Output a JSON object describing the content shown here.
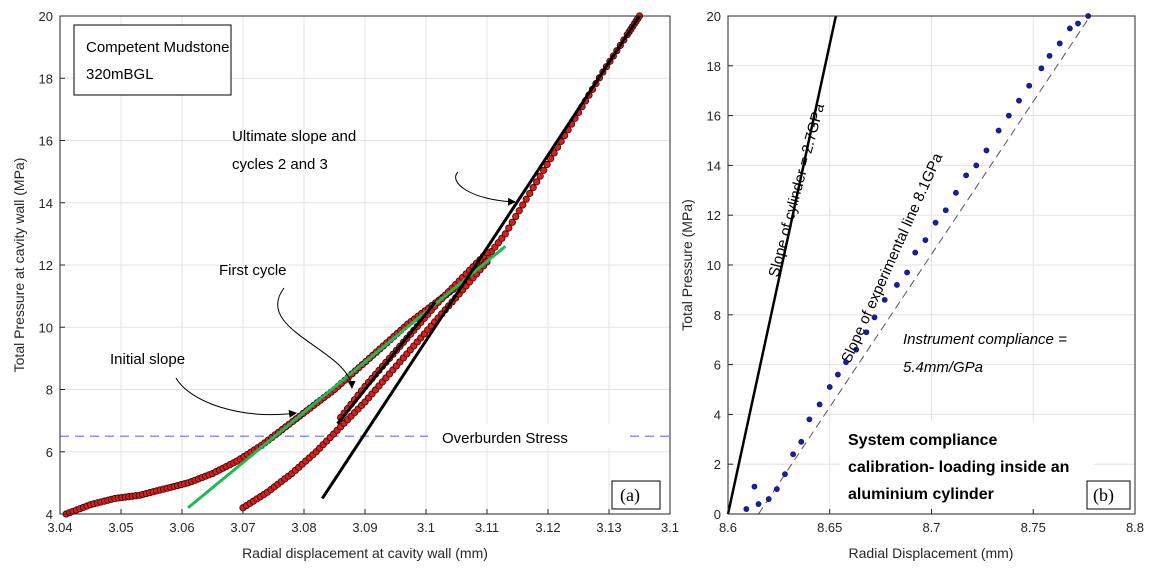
{
  "chart_data": [
    {
      "type": "scatter",
      "panel": "(a)",
      "xlabel": "Radial displacement at cavity wall (mm)",
      "ylabel": "Total Pressure at cavity wall (MPa)",
      "xlim": [
        3.04,
        3.14
      ],
      "ylim": [
        4,
        20
      ],
      "xticks": [
        "3.04",
        "3.05",
        "3.06",
        "3.07",
        "3.08",
        "3.09",
        "3.1",
        "3.11",
        "3.12",
        "3.13",
        "3.1"
      ],
      "yticks": [
        "4",
        "6",
        "8",
        "10",
        "12",
        "14",
        "16",
        "18",
        "20"
      ],
      "grid": true,
      "textbox": [
        "Competent Mudstone",
        "320mBGL"
      ],
      "colors": {
        "points": "#d62020",
        "point_edge": "#3a0000",
        "initial_slope": "#1db954",
        "cycle_slopes": "#000000",
        "overburden": "#6b6bff"
      },
      "series": [
        {
          "x": [
            3.041,
            3.045,
            3.049,
            3.053,
            3.057,
            3.061,
            3.065,
            3.069,
            3.073,
            3.077,
            3.081,
            3.085,
            3.089,
            3.093,
            3.097,
            3.101,
            3.105,
            3.109,
            3.113,
            3.117,
            3.121,
            3.125,
            3.129,
            3.133,
            3.135
          ],
          "y": [
            4.0,
            4.3,
            4.5,
            4.6,
            4.8,
            5.0,
            5.3,
            5.7,
            6.2,
            6.8,
            7.4,
            8.0,
            8.7,
            9.4,
            10.1,
            10.7,
            11.3,
            12.0,
            13.0,
            14.3,
            15.6,
            16.9,
            18.2,
            19.4,
            20.0
          ]
        },
        {
          "x": [
            3.07,
            3.074,
            3.078,
            3.082,
            3.086,
            3.09,
            3.094,
            3.098,
            3.102,
            3.106,
            3.11
          ],
          "y": [
            4.2,
            4.7,
            5.3,
            6.0,
            6.8,
            7.6,
            8.5,
            9.4,
            10.3,
            11.2,
            12.1
          ]
        },
        {
          "x": [
            3.086,
            3.09,
            3.094,
            3.098,
            3.102,
            3.106,
            3.11
          ],
          "y": [
            7.1,
            8.1,
            9.0,
            9.9,
            10.8,
            11.6,
            12.4
          ]
        }
      ],
      "lines": [
        {
          "label": "Initial slope",
          "x": [
            3.061,
            3.113
          ],
          "y": [
            4.2,
            12.6
          ]
        },
        {
          "label": "First cycle",
          "x": [
            3.0855,
            3.1015
          ],
          "y": [
            6.9,
            10.8
          ]
        },
        {
          "label": "Ultimate slope and cycles 2 and 3",
          "x": [
            3.083,
            3.135
          ],
          "y": [
            4.5,
            20.0
          ]
        },
        {
          "label": "Overburden Stress",
          "x": [
            3.04,
            3.14
          ],
          "y": [
            6.5,
            6.5
          ]
        }
      ],
      "annotations": {
        "ultimate_line1": "Ultimate slope and",
        "ultimate_line2": "cycles 2 and 3",
        "first_cycle": "First cycle",
        "initial_slope": "Initial slope",
        "overburden": "Overburden Stress"
      }
    },
    {
      "type": "scatter",
      "panel": "(b)",
      "xlabel": "Radial Displacement (mm)",
      "ylabel": "Total Pressure (MPa)",
      "xlim": [
        8.6,
        8.8
      ],
      "ylim": [
        0,
        20
      ],
      "xticks": [
        "8.6",
        "8.65",
        "8.7",
        "8.75",
        "8.8"
      ],
      "yticks": [
        "0",
        "2",
        "4",
        "6",
        "8",
        "10",
        "12",
        "14",
        "16",
        "18",
        "20"
      ],
      "grid": true,
      "colors": {
        "points": "#1520a6",
        "cylinder": "#000000",
        "experimental": "#555555"
      },
      "series": [
        {
          "x": [
            8.609,
            8.613,
            8.615,
            8.62,
            8.624,
            8.628,
            8.632,
            8.636,
            8.64,
            8.645,
            8.65,
            8.654,
            8.658,
            8.663,
            8.668,
            8.672,
            8.677,
            8.683,
            8.688,
            8.692,
            8.697,
            8.702,
            8.707,
            8.712,
            8.717,
            8.722,
            8.727,
            8.733,
            8.738,
            8.743,
            8.748,
            8.754,
            8.758,
            8.763,
            8.768,
            8.772,
            8.777
          ],
          "y": [
            0.2,
            1.1,
            0.4,
            0.6,
            1.0,
            1.6,
            2.4,
            2.9,
            3.8,
            4.4,
            5.1,
            5.6,
            6.1,
            6.6,
            7.3,
            7.9,
            8.6,
            9.2,
            9.7,
            10.5,
            11.0,
            11.7,
            12.2,
            12.9,
            13.6,
            14.0,
            14.6,
            15.4,
            16.0,
            16.6,
            17.2,
            17.9,
            18.4,
            18.9,
            19.5,
            19.7,
            20.0
          ]
        }
      ],
      "lines": [
        {
          "label": "Slope of cylinder = 2.7GPa",
          "x": [
            8.6,
            8.653
          ],
          "y": [
            0,
            20
          ]
        },
        {
          "label": "Slope of experimental line 8.1GPa",
          "x": [
            8.615,
            8.778
          ],
          "y": [
            0,
            20
          ]
        }
      ],
      "annotations": {
        "cylinder": "Slope of cylinder = 2.7GPa",
        "experimental": "Slope of experimental line 8.1GPa",
        "compliance_line1": "Instrument compliance =",
        "compliance_line2": "5.4mm/GPa",
        "system_line1": "System compliance",
        "system_line2": "calibration- loading inside an",
        "system_line3": "aluminium cylinder"
      }
    }
  ]
}
